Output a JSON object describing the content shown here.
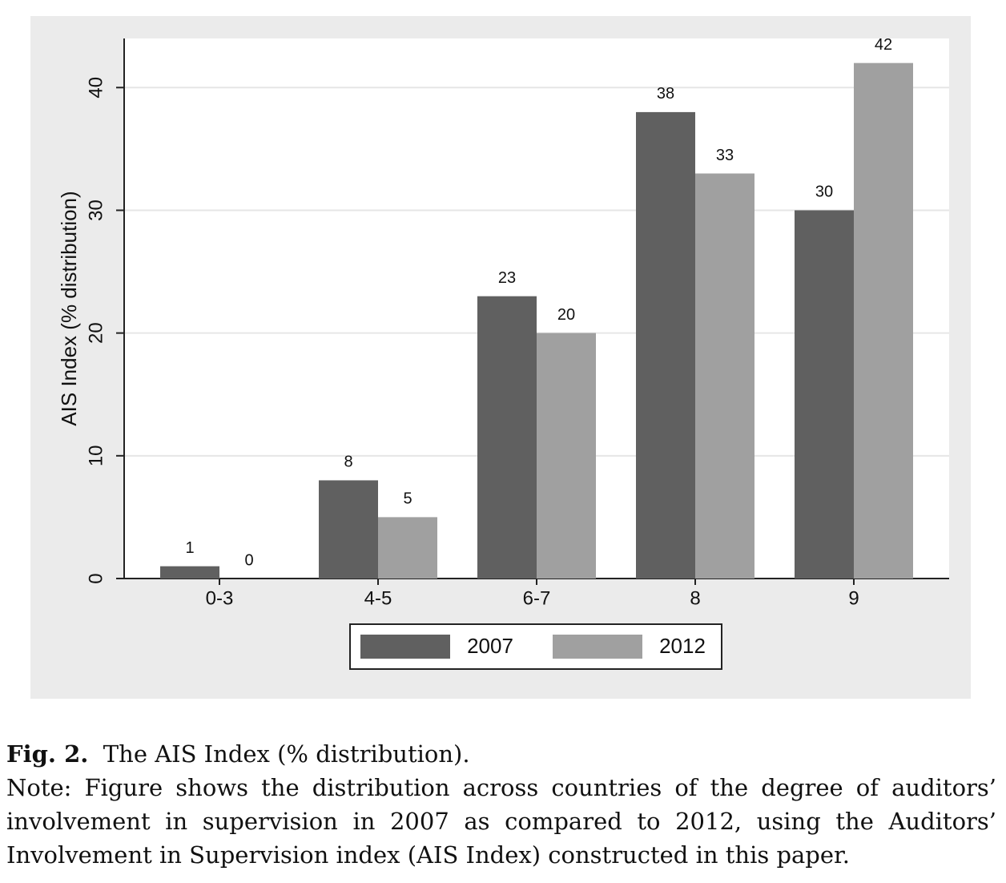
{
  "chart_data": {
    "type": "bar",
    "ylabel": "AIS Index (% distribution)",
    "categories": [
      "0-3",
      "4-5",
      "6-7",
      "8",
      "9"
    ],
    "series": [
      {
        "name": "2007",
        "color": "#606060",
        "values": [
          1,
          8,
          23,
          38,
          30
        ]
      },
      {
        "name": "2012",
        "color": "#a0a0a0",
        "values": [
          0,
          5,
          20,
          33,
          42
        ]
      }
    ],
    "ylim": [
      0,
      44
    ],
    "yticks": [
      0,
      10,
      20,
      30,
      40
    ],
    "grid": true,
    "legend": "bottom"
  },
  "caption": {
    "label": "Fig. 2.",
    "title": "The AIS Index (% distribution).",
    "note": "Note: Figure shows the distribution across countries of the degree of auditors’ involvement in supervision in 2007 as compared to 2012, using the Auditors’ Involvement in Supervision index (AIS Index) constructed in this paper."
  }
}
